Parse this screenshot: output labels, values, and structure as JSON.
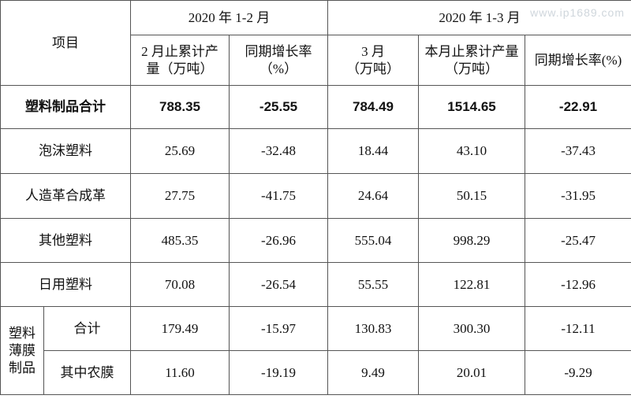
{
  "header": {
    "item": "项目",
    "groups": [
      "2020 年 1-2 月",
      "2020 年 1-3 月"
    ],
    "columns": [
      [
        "2 月止累计产",
        "量（万吨）"
      ],
      [
        "同期增长率",
        "（%）"
      ],
      [
        "3 月",
        "（万吨）"
      ],
      [
        "本月止累计产量",
        "（万吨）"
      ],
      [
        "同期增长率(%)"
      ]
    ]
  },
  "rows": [
    {
      "label": "塑料制品合计",
      "values": [
        "788.35",
        "-25.55",
        "784.49",
        "1514.65",
        "-22.91"
      ]
    },
    {
      "label": "泡沫塑料",
      "values": [
        "25.69",
        "-32.48",
        "18.44",
        "43.10",
        "-37.43"
      ]
    },
    {
      "label": "人造革合成革",
      "values": [
        "27.75",
        "-41.75",
        "24.64",
        "50.15",
        "-31.95"
      ]
    },
    {
      "label": "其他塑料",
      "values": [
        "485.35",
        "-26.96",
        "555.04",
        "998.29",
        "-25.47"
      ]
    },
    {
      "label": "日用塑料",
      "values": [
        "70.08",
        "-26.54",
        "55.55",
        "122.81",
        "-12.96"
      ]
    }
  ],
  "film_group": {
    "label": [
      "塑料",
      "薄膜",
      "制品"
    ],
    "rows": [
      {
        "label": "合计",
        "values": [
          "179.49",
          "-15.97",
          "130.83",
          "300.30",
          "-12.11"
        ]
      },
      {
        "label": "其中农膜",
        "values": [
          "11.60",
          "-19.19",
          "9.49",
          "20.01",
          "-9.29"
        ]
      }
    ]
  },
  "watermark": "www.ip1689.com"
}
